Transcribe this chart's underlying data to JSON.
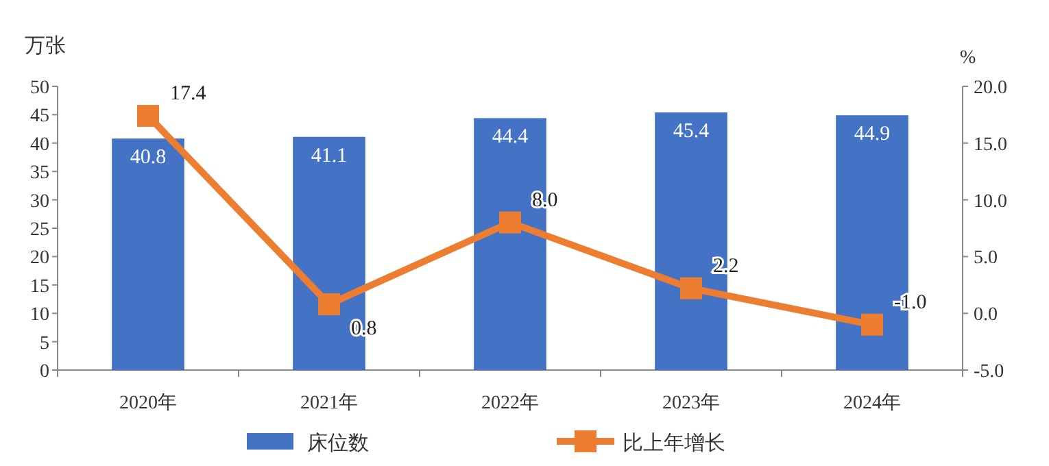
{
  "chart_data": {
    "type": "bar",
    "categories": [
      "2020年",
      "2021年",
      "2022年",
      "2023年",
      "2024年"
    ],
    "series": [
      {
        "name": "床位数",
        "color": "#4472c4",
        "values": [
          40.8,
          41.1,
          44.4,
          45.4,
          44.9
        ],
        "value_labels": [
          "40.8",
          "41.1",
          "44.4",
          "45.4",
          "44.9"
        ]
      },
      {
        "name": "比上年增长",
        "color": "#ed7d31",
        "type": "line",
        "axis": "y2",
        "values": [
          17.4,
          0.8,
          8.0,
          2.2,
          -1.0
        ],
        "value_labels": [
          "17.4",
          "0.8",
          "8.0",
          "2.2",
          "-1.0"
        ]
      }
    ],
    "ylabel": "万张",
    "y2label": "%",
    "ylim": [
      0,
      50
    ],
    "yticks": [
      0,
      5,
      10,
      15,
      20,
      25,
      30,
      35,
      40,
      45,
      50
    ],
    "y2lim": [
      -5,
      20
    ],
    "y2ticks": [
      {
        "value": -5,
        "label": "-5.0"
      },
      {
        "value": 0,
        "label": "0.0"
      },
      {
        "value": 5,
        "label": "5.0"
      },
      {
        "value": 10,
        "label": "10.0"
      },
      {
        "value": 15,
        "label": "15.0"
      },
      {
        "value": 20,
        "label": "20.0"
      }
    ],
    "marker": "square",
    "legend": "bottom",
    "grid": false
  }
}
